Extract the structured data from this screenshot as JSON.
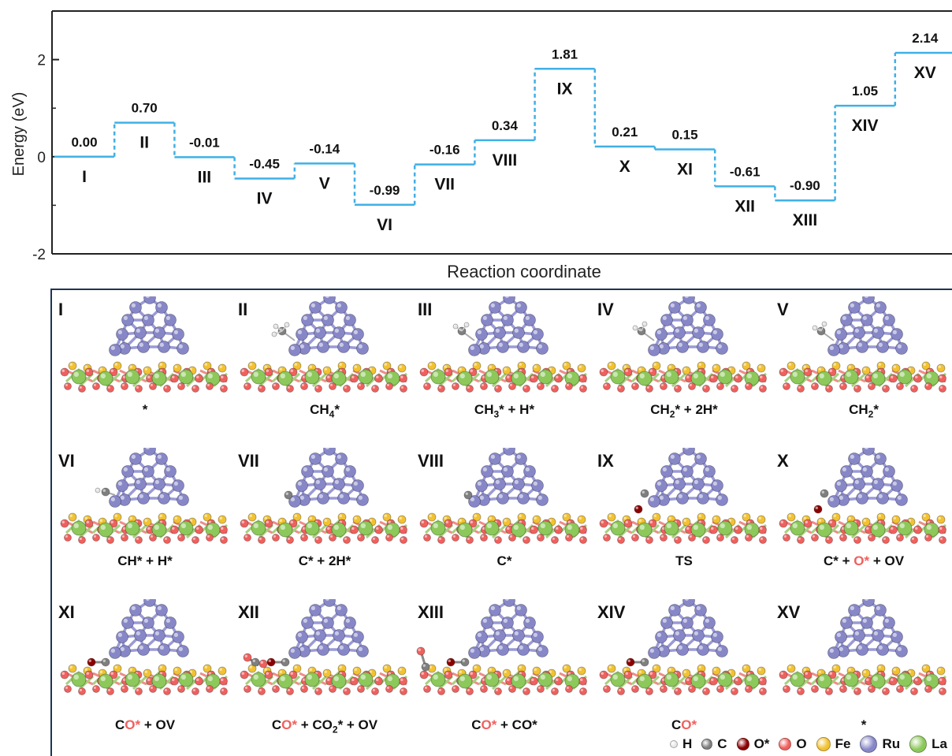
{
  "energy_diagram": {
    "ylabel": "Energy (eV)",
    "xlabel": "Reaction coordinate",
    "ylim": [
      -2,
      3
    ],
    "yticks": [
      "-2",
      "0",
      "2"
    ],
    "line_color": "#3fb0e6",
    "states": [
      {
        "label": "I",
        "energy": 0.0,
        "text": "0.00"
      },
      {
        "label": "II",
        "energy": 0.7,
        "text": "0.70"
      },
      {
        "label": "III",
        "energy": -0.01,
        "text": "-0.01"
      },
      {
        "label": "IV",
        "energy": -0.45,
        "text": "-0.45"
      },
      {
        "label": "V",
        "energy": -0.14,
        "text": "-0.14"
      },
      {
        "label": "VI",
        "energy": -0.99,
        "text": "-0.99"
      },
      {
        "label": "VII",
        "energy": -0.16,
        "text": "-0.16"
      },
      {
        "label": "VIII",
        "energy": 0.34,
        "text": "0.34"
      },
      {
        "label": "IX",
        "energy": 1.81,
        "text": "1.81"
      },
      {
        "label": "X",
        "energy": 0.21,
        "text": "0.21"
      },
      {
        "label": "XI",
        "energy": 0.15,
        "text": "0.15"
      },
      {
        "label": "XII",
        "energy": -0.61,
        "text": "-0.61"
      },
      {
        "label": "XIII",
        "energy": -0.9,
        "text": "-0.90"
      },
      {
        "label": "XIV",
        "energy": 1.05,
        "text": "1.05"
      },
      {
        "label": "XV",
        "energy": 2.14,
        "text": "2.14"
      }
    ]
  },
  "structures": [
    {
      "label": "I",
      "caption": [
        {
          "t": "*"
        }
      ],
      "adsorbate": "none"
    },
    {
      "label": "II",
      "caption": [
        {
          "t": "CH"
        },
        {
          "t": "4",
          "sub": true
        },
        {
          "t": "*"
        }
      ],
      "adsorbate": "CH4"
    },
    {
      "label": "III",
      "caption": [
        {
          "t": "CH"
        },
        {
          "t": "3",
          "sub": true
        },
        {
          "t": "* + H*"
        }
      ],
      "adsorbate": "CH3"
    },
    {
      "label": "IV",
      "caption": [
        {
          "t": "CH"
        },
        {
          "t": "2",
          "sub": true
        },
        {
          "t": "* + 2H*"
        }
      ],
      "adsorbate": "CH2"
    },
    {
      "label": "V",
      "caption": [
        {
          "t": "CH"
        },
        {
          "t": "2",
          "sub": true
        },
        {
          "t": "*"
        }
      ],
      "adsorbate": "CH2"
    },
    {
      "label": "VI",
      "caption": [
        {
          "t": "CH* + H*"
        }
      ],
      "adsorbate": "CH"
    },
    {
      "label": "VII",
      "caption": [
        {
          "t": "C* + 2H*"
        }
      ],
      "adsorbate": "C"
    },
    {
      "label": "VIII",
      "caption": [
        {
          "t": "C*"
        }
      ],
      "adsorbate": "C"
    },
    {
      "label": "IX",
      "caption": [
        {
          "t": "TS"
        }
      ],
      "adsorbate": "TS"
    },
    {
      "label": "X",
      "caption": [
        {
          "t": "C* + "
        },
        {
          "t": "O*",
          "red": true
        },
        {
          "t": " + OV"
        }
      ],
      "adsorbate": "TS"
    },
    {
      "label": "XI",
      "caption": [
        {
          "t": "C"
        },
        {
          "t": "O*",
          "red": true
        },
        {
          "t": " + OV"
        }
      ],
      "adsorbate": "CO"
    },
    {
      "label": "XII",
      "caption": [
        {
          "t": "C"
        },
        {
          "t": "O*",
          "red": true
        },
        {
          "t": " + CO"
        },
        {
          "t": "2",
          "sub": true
        },
        {
          "t": "* + OV"
        }
      ],
      "adsorbate": "CO_CO2"
    },
    {
      "label": "XIII",
      "caption": [
        {
          "t": "C"
        },
        {
          "t": "O*",
          "red": true
        },
        {
          "t": " + CO*"
        }
      ],
      "adsorbate": "CO_CO"
    },
    {
      "label": "XIV",
      "caption": [
        {
          "t": "C"
        },
        {
          "t": "O*",
          "red": true
        }
      ],
      "adsorbate": "CO"
    },
    {
      "label": "XV",
      "caption": [
        {
          "t": "*"
        }
      ],
      "adsorbate": "none"
    }
  ],
  "legend": [
    {
      "label": "H",
      "color": "#e8e8e8",
      "size": 8
    },
    {
      "label": "C",
      "color": "#808080",
      "size": 12
    },
    {
      "label": "O*",
      "color": "#8b0000",
      "size": 14
    },
    {
      "label": "O",
      "color": "#f0605d",
      "size": 14
    },
    {
      "label": "Fe",
      "color": "#f2c230",
      "size": 16
    },
    {
      "label": "Ru",
      "color": "#8787c8",
      "size": 20
    },
    {
      "label": "La",
      "color": "#8cc85a",
      "size": 20
    }
  ]
}
